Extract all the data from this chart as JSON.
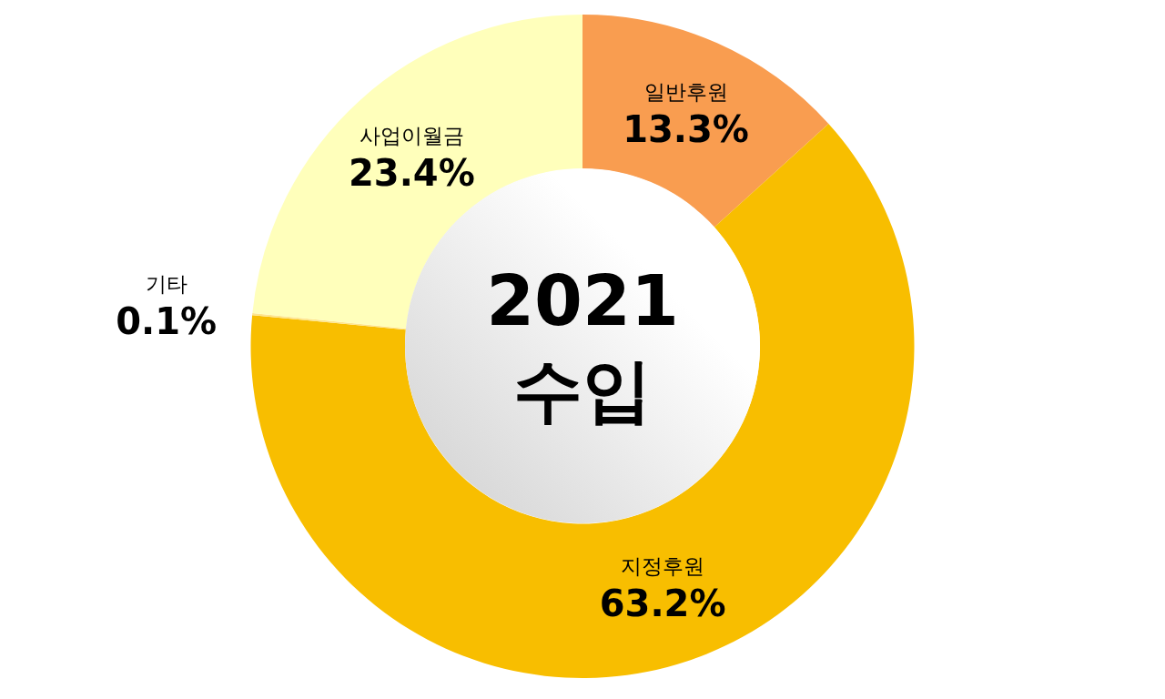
{
  "chart_data": {
    "type": "donut",
    "title": "2021 수입",
    "categories": [
      "일반후원",
      "지정후원",
      "기타",
      "사업이월금"
    ],
    "values": [
      13.3,
      63.2,
      0.1,
      23.4
    ],
    "value_labels": [
      "13.3%",
      "63.2%",
      "0.1%",
      "23.4%"
    ],
    "colors": [
      "#f99d50",
      "#f8be00",
      "#fee58d",
      "#ffffbb"
    ]
  }
}
